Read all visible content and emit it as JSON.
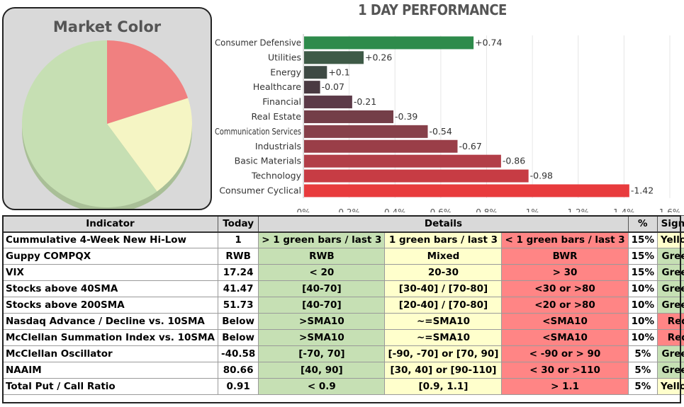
{
  "market_color": {
    "title": "Market Color",
    "slices": [
      {
        "label": "Red",
        "value": 20,
        "color": "#f08080"
      },
      {
        "label": "Yellow",
        "value": 20,
        "color": "#f5f5c4"
      },
      {
        "label": "Green",
        "value": 60,
        "color": "#c6dfb3"
      }
    ]
  },
  "chart_data": {
    "type": "bar",
    "orientation": "horizontal",
    "title": "1 DAY PERFORMANCE",
    "categories": [
      "Consumer Defensive",
      "Utilities",
      "Energy",
      "Healthcare",
      "Financial",
      "Real Estate",
      "Communication Services",
      "Industrials",
      "Basic Materials",
      "Technology",
      "Consumer Cyclical"
    ],
    "values": [
      0.74,
      0.26,
      0.1,
      -0.07,
      -0.21,
      -0.39,
      -0.54,
      -0.67,
      -0.86,
      -0.98,
      -1.42
    ],
    "value_labels": [
      "+0.74",
      "+0.26",
      "+0.1",
      "-0.07",
      "-0.21",
      "-0.39",
      "-0.54",
      "-0.67",
      "-0.86",
      "-0.98",
      "-1.42"
    ],
    "colors": [
      "#2e8b4b",
      "#3e5a47",
      "#3e4a44",
      "#4a3a42",
      "#5c3a48",
      "#743e48",
      "#87404a",
      "#9a3e48",
      "#b23e48",
      "#c73c44",
      "#e83b3d"
    ],
    "xlim": [
      0,
      1.6
    ],
    "xticks": [
      "0%",
      "0.2%",
      "0.4%",
      "0.6%",
      "0.8%",
      "1%",
      "1.2%",
      "1.4%",
      "1.6%"
    ],
    "bar_length": "absolute value",
    "grid": true
  },
  "table": {
    "headers": [
      "Indicator",
      "Today",
      "Details",
      "%",
      "Signal"
    ],
    "rows": [
      {
        "name": "Cummulative 4-Week New Hi-Low",
        "today": "1",
        "green": "> 1 green bars / last 3",
        "yellow": "1 green bars / last 3",
        "red": "< 1 green bars / last 3",
        "pct": "15%",
        "signal": "Yellow"
      },
      {
        "name": "Guppy COMPQX",
        "today": "RWB",
        "green": "RWB",
        "yellow": "Mixed",
        "red": "BWR",
        "pct": "15%",
        "signal": "Green"
      },
      {
        "name": "VIX",
        "today": "17.24",
        "green": "< 20",
        "yellow": "20-30",
        "red": "> 30",
        "pct": "15%",
        "signal": "Green"
      },
      {
        "name": "Stocks above 40SMA",
        "today": "41.47",
        "green": "[40-70]",
        "yellow": "[30-40] / [70-80]",
        "red": "<30 or >80",
        "pct": "10%",
        "signal": "Green"
      },
      {
        "name": "Stocks above 200SMA",
        "today": "51.73",
        "green": "[40-70]",
        "yellow": "[20-40] / [70-80]",
        "red": "<20 or >80",
        "pct": "10%",
        "signal": "Green"
      },
      {
        "name": "Nasdaq Advance / Decline vs. 10SMA",
        "today": "Below",
        "green": ">SMA10",
        "yellow": "~=SMA10",
        "red": "<SMA10",
        "pct": "10%",
        "signal": "Red"
      },
      {
        "name": "McClellan Summation Index vs. 10SMA",
        "today": "Below",
        "green": ">SMA10",
        "yellow": "~=SMA10",
        "red": "<SMA10",
        "pct": "10%",
        "signal": "Red"
      },
      {
        "name": "McClellan Oscillator",
        "today": "-40.58",
        "green": "[-70,  70]",
        "yellow": "[-90, -70] or [70, 90]",
        "red": "< -90 or > 90",
        "pct": "5%",
        "signal": "Green"
      },
      {
        "name": "NAAIM",
        "today": "80.66",
        "green": "[40, 90]",
        "yellow": "[30, 40] or [90-110]",
        "red": "< 30 or >110",
        "pct": "5%",
        "signal": "Green"
      },
      {
        "name": "Total Put / Call Ratio",
        "today": "0.91",
        "green": "< 0.9",
        "yellow": "[0.9, 1.1]",
        "red": "> 1.1",
        "pct": "5%",
        "signal": "Yellow"
      }
    ]
  }
}
